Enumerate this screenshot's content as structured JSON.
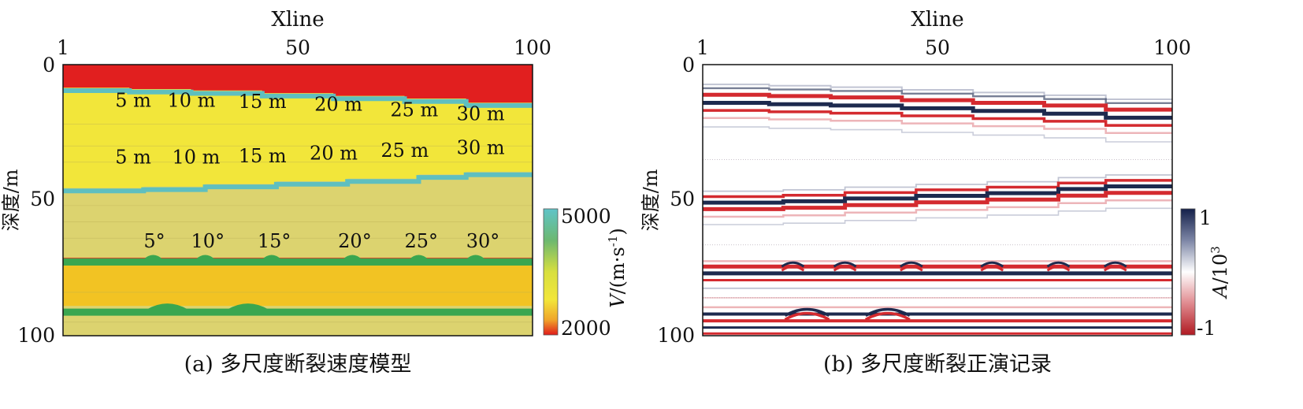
{
  "colors": {
    "red": "#e11f1f",
    "yellow": "#f2e63a",
    "khaki": "#dcd36f",
    "gold": "#f2c323",
    "cyan": "#5fbfbf",
    "green": "#3aa650",
    "navy": "#1d2a4e"
  },
  "chart_data": [
    {
      "type": "heatmap",
      "panel": "a",
      "caption": "(a) 多尺度断裂速度模型",
      "xlabel": "Xline",
      "ylabel": "深度/m",
      "x_ticks": [
        "1",
        "50",
        "100"
      ],
      "y_ticks": [
        "0",
        "50",
        "100"
      ],
      "xlim": [
        1,
        100
      ],
      "ylim": [
        0,
        100
      ],
      "colorbar": {
        "label": "V/(m·s⁻¹)",
        "label_var": "V",
        "label_unit": "/(m·s",
        "label_exp": "-1",
        "label_close": ")",
        "max_label": "5000",
        "min_label": "2000",
        "range": [
          2000,
          5000
        ]
      },
      "layers": [
        {
          "name": "top",
          "color": "red"
        },
        {
          "name": "upper",
          "color": "yellow"
        },
        {
          "name": "middle",
          "color": "khaki"
        },
        {
          "name": "lower",
          "color": "gold"
        },
        {
          "name": "bottom",
          "color": "khaki"
        }
      ],
      "upper_horizon_steps": [
        {
          "xline": [
            1,
            15
          ],
          "depth": 8.5
        },
        {
          "xline": [
            15,
            28
          ],
          "depth": 9.0
        },
        {
          "xline": [
            28,
            43
          ],
          "depth": 9.5
        },
        {
          "xline": [
            43,
            58
          ],
          "depth": 10.5
        },
        {
          "xline": [
            58,
            73
          ],
          "depth": 11.5
        },
        {
          "xline": [
            73,
            86
          ],
          "depth": 12.5
        },
        {
          "xline": [
            86,
            100
          ],
          "depth": 14.0
        }
      ],
      "middle_horizon_steps": [
        {
          "xline": [
            1,
            18
          ],
          "depth": 45.5
        },
        {
          "xline": [
            18,
            31
          ],
          "depth": 45.0
        },
        {
          "xline": [
            31,
            46
          ],
          "depth": 44.0
        },
        {
          "xline": [
            46,
            61
          ],
          "depth": 43.0
        },
        {
          "xline": [
            61,
            76
          ],
          "depth": 42.0
        },
        {
          "xline": [
            76,
            86
          ],
          "depth": 40.5
        },
        {
          "xline": [
            86,
            100
          ],
          "depth": 39.5
        }
      ],
      "lower_horizon_depth": 71.5,
      "lower_bumps_xline": [
        20,
        31,
        45,
        62,
        76,
        88
      ],
      "deep_horizon_depth": 90,
      "deep_bumps_xline": [
        23,
        40
      ],
      "annotations": {
        "upper_row": [
          "5 m",
          "10 m",
          "15 m",
          "20 m",
          "25 m",
          "30 m"
        ],
        "middle_row": [
          "5 m",
          "10 m",
          "15 m",
          "20 m",
          "25 m",
          "30 m"
        ],
        "lower_row": [
          "5°",
          "10°",
          "15°",
          "20°",
          "25°",
          "30°"
        ]
      }
    },
    {
      "type": "heatmap",
      "panel": "b",
      "caption": "(b) 多尺度断裂正演记录",
      "xlabel": "Xline",
      "ylabel": "深度/m",
      "x_ticks": [
        "1",
        "50",
        "100"
      ],
      "y_ticks": [
        "0",
        "50",
        "100"
      ],
      "xlim": [
        1,
        100
      ],
      "ylim": [
        0,
        100
      ],
      "colorbar": {
        "label": "A/10³",
        "label_var": "A",
        "label_unit": "/10",
        "label_exp": "3",
        "max_label": "1",
        "min_label": "-1",
        "range": [
          -1,
          1
        ]
      }
    }
  ]
}
